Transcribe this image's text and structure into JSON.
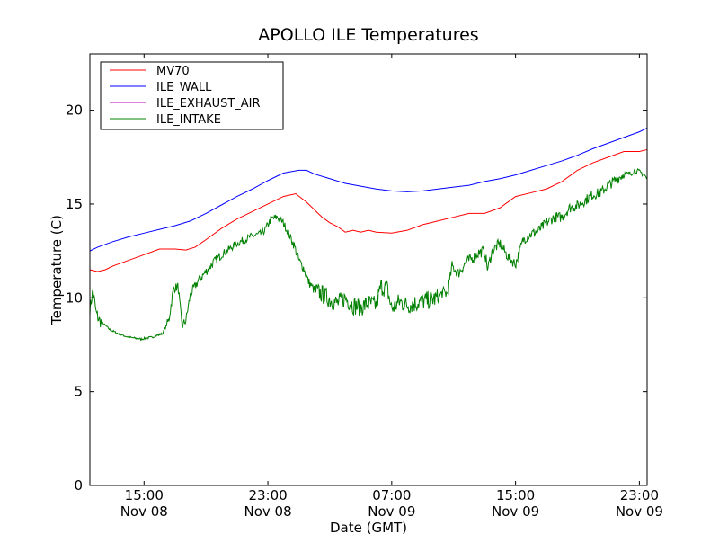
{
  "chart_data": {
    "type": "line",
    "title": "APOLLO ILE Temperatures",
    "xlabel": "Date (GMT)",
    "ylabel": "Temperature (C)",
    "ylim": [
      0,
      23
    ],
    "xlim": [
      11.5,
      47.5
    ],
    "x_unit": "hours since Nov 08 00:00 GMT",
    "yticks": [
      0,
      5,
      10,
      15,
      20
    ],
    "xticks": [
      {
        "x": 15,
        "line1": "15:00",
        "line2": "Nov 08"
      },
      {
        "x": 23,
        "line1": "23:00",
        "line2": "Nov 08"
      },
      {
        "x": 31,
        "line1": "07:00",
        "line2": "Nov 09"
      },
      {
        "x": 39,
        "line1": "15:00",
        "line2": "Nov 09"
      },
      {
        "x": 47,
        "line1": "23:00",
        "line2": "Nov 09"
      }
    ],
    "legend_position": "top-left",
    "grid": false,
    "series": [
      {
        "name": "MV70",
        "color": "#ff0000",
        "x": [
          11.5,
          12.0,
          12.5,
          13.0,
          14.0,
          15.0,
          16.0,
          17.0,
          17.7,
          18.3,
          19.0,
          20.0,
          21.0,
          22.0,
          23.0,
          24.0,
          24.8,
          25.5,
          26.0,
          26.5,
          27.0,
          27.5,
          28.0,
          28.5,
          29.0,
          29.5,
          30.0,
          31.0,
          32.0,
          33.0,
          34.0,
          35.0,
          36.0,
          37.0,
          38.0,
          39.0,
          40.0,
          41.0,
          42.0,
          43.0,
          44.0,
          45.0,
          46.0,
          47.0,
          47.5
        ],
        "y": [
          11.5,
          11.4,
          11.5,
          11.7,
          12.0,
          12.3,
          12.6,
          12.6,
          12.55,
          12.7,
          13.1,
          13.7,
          14.2,
          14.6,
          15.0,
          15.4,
          15.55,
          15.1,
          14.7,
          14.3,
          14.0,
          13.8,
          13.5,
          13.6,
          13.5,
          13.6,
          13.5,
          13.45,
          13.6,
          13.9,
          14.1,
          14.3,
          14.5,
          14.5,
          14.8,
          15.4,
          15.6,
          15.8,
          16.2,
          16.8,
          17.2,
          17.5,
          17.8,
          17.8,
          17.9
        ]
      },
      {
        "name": "ILE_WALL",
        "color": "#0000ff",
        "x": [
          11.5,
          12.0,
          13.0,
          14.0,
          15.0,
          16.0,
          17.0,
          18.0,
          19.0,
          20.0,
          21.0,
          22.0,
          23.0,
          24.0,
          25.0,
          25.5,
          26.0,
          27.0,
          28.0,
          29.0,
          30.0,
          31.0,
          32.0,
          33.0,
          34.0,
          35.0,
          36.0,
          37.0,
          38.0,
          39.0,
          40.0,
          41.0,
          42.0,
          43.0,
          44.0,
          45.0,
          46.0,
          47.0,
          47.5
        ],
        "y": [
          12.5,
          12.7,
          13.0,
          13.25,
          13.45,
          13.65,
          13.85,
          14.1,
          14.5,
          14.95,
          15.4,
          15.8,
          16.25,
          16.65,
          16.8,
          16.8,
          16.6,
          16.35,
          16.1,
          15.95,
          15.8,
          15.7,
          15.65,
          15.7,
          15.8,
          15.9,
          16.0,
          16.2,
          16.35,
          16.55,
          16.8,
          17.05,
          17.3,
          17.6,
          17.95,
          18.25,
          18.55,
          18.85,
          19.05
        ]
      },
      {
        "name": "ILE_EXHAUST_AIR",
        "color": "#bf00bf",
        "x": [],
        "y": []
      },
      {
        "name": "ILE_INTAKE",
        "color": "#008000",
        "x": [
          11.5,
          11.7,
          11.9,
          12.1,
          12.4,
          12.8,
          13.3,
          14.0,
          14.8,
          15.5,
          16.2,
          16.6,
          16.9,
          17.2,
          17.45,
          17.7,
          18.0,
          18.5,
          19.0,
          19.5,
          20.0,
          21.0,
          22.0,
          22.5,
          22.8,
          23.2,
          23.6,
          24.0,
          24.3,
          24.7,
          25.0,
          25.3,
          25.6,
          26.0,
          26.5,
          27.0,
          27.5,
          28.0,
          28.5,
          29.0,
          29.5,
          30.0,
          30.3,
          30.7,
          31.0,
          31.5,
          32.0,
          32.5,
          33.0,
          33.5,
          34.0,
          34.3,
          34.6,
          34.9,
          35.3,
          35.8,
          36.2,
          36.6,
          37.0,
          37.2,
          37.45,
          37.7,
          38.0,
          38.5,
          39.0,
          39.5,
          40.0,
          40.5,
          41.0,
          41.5,
          42.0,
          42.5,
          43.0,
          43.5,
          44.0,
          44.5,
          45.0,
          45.5,
          46.0,
          46.4,
          46.7,
          47.0,
          47.3,
          47.5
        ],
        "y": [
          9.4,
          10.4,
          9.2,
          8.8,
          8.6,
          8.3,
          8.1,
          7.9,
          7.8,
          7.9,
          8.1,
          8.8,
          10.5,
          10.6,
          8.5,
          8.8,
          10.2,
          10.9,
          11.4,
          11.9,
          12.3,
          12.9,
          13.3,
          13.4,
          13.6,
          14.2,
          14.3,
          14.0,
          13.5,
          12.8,
          12.0,
          11.6,
          10.9,
          10.4,
          10.2,
          9.9,
          9.7,
          10.0,
          9.6,
          9.5,
          9.7,
          9.6,
          10.6,
          10.5,
          9.4,
          9.8,
          9.6,
          9.7,
          9.8,
          9.9,
          10.0,
          10.3,
          10.2,
          11.7,
          11.3,
          11.9,
          12.1,
          12.4,
          12.5,
          11.5,
          12.4,
          12.7,
          12.9,
          12.2,
          11.8,
          13.1,
          13.4,
          13.6,
          14.0,
          14.3,
          14.3,
          14.8,
          14.9,
          15.2,
          15.5,
          15.6,
          16.0,
          16.3,
          16.6,
          16.6,
          16.8,
          16.7,
          16.6,
          16.3
        ]
      }
    ]
  }
}
